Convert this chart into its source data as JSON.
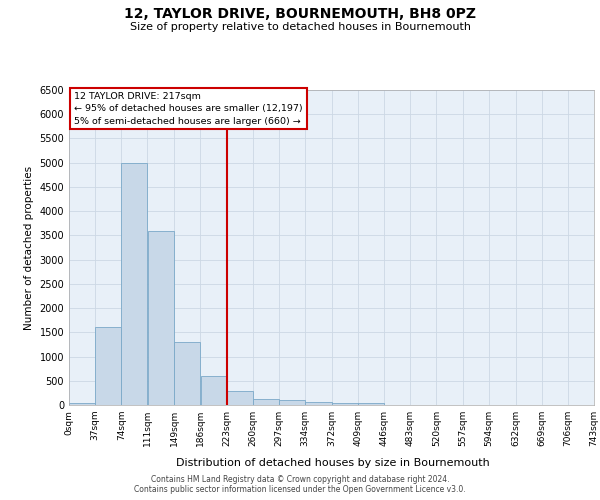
{
  "title": "12, TAYLOR DRIVE, BOURNEMOUTH, BH8 0PZ",
  "subtitle": "Size of property relative to detached houses in Bournemouth",
  "xlabel": "Distribution of detached houses by size in Bournemouth",
  "ylabel": "Number of detached properties",
  "bin_edges": [
    0,
    37,
    74,
    111,
    149,
    186,
    223,
    260,
    297,
    334,
    372,
    409,
    446,
    483,
    520,
    557,
    594,
    632,
    669,
    706,
    743
  ],
  "bar_heights": [
    50,
    1600,
    5000,
    3600,
    1300,
    600,
    280,
    120,
    100,
    70,
    50,
    50,
    10,
    5,
    3,
    2,
    1,
    1,
    0,
    0
  ],
  "bar_color": "#c8d8e8",
  "bar_edge_color": "#7aa8c8",
  "vline_x": 223,
  "vline_color": "#cc0000",
  "annotation_title": "12 TAYLOR DRIVE: 217sqm",
  "annotation_line1": "← 95% of detached houses are smaller (12,197)",
  "annotation_line2": "5% of semi-detached houses are larger (660) →",
  "annotation_box_color": "#cc0000",
  "annotation_bg": "#ffffff",
  "ylim": [
    0,
    6500
  ],
  "yticks": [
    0,
    500,
    1000,
    1500,
    2000,
    2500,
    3000,
    3500,
    4000,
    4500,
    5000,
    5500,
    6000,
    6500
  ],
  "tick_labels": [
    "0sqm",
    "37sqm",
    "74sqm",
    "111sqm",
    "149sqm",
    "186sqm",
    "223sqm",
    "260sqm",
    "297sqm",
    "334sqm",
    "372sqm",
    "409sqm",
    "446sqm",
    "483sqm",
    "520sqm",
    "557sqm",
    "594sqm",
    "632sqm",
    "669sqm",
    "706sqm",
    "743sqm"
  ],
  "grid_color": "#ccd8e4",
  "bg_color": "#e8f0f8",
  "footer_line1": "Contains HM Land Registry data © Crown copyright and database right 2024.",
  "footer_line2": "Contains public sector information licensed under the Open Government Licence v3.0."
}
